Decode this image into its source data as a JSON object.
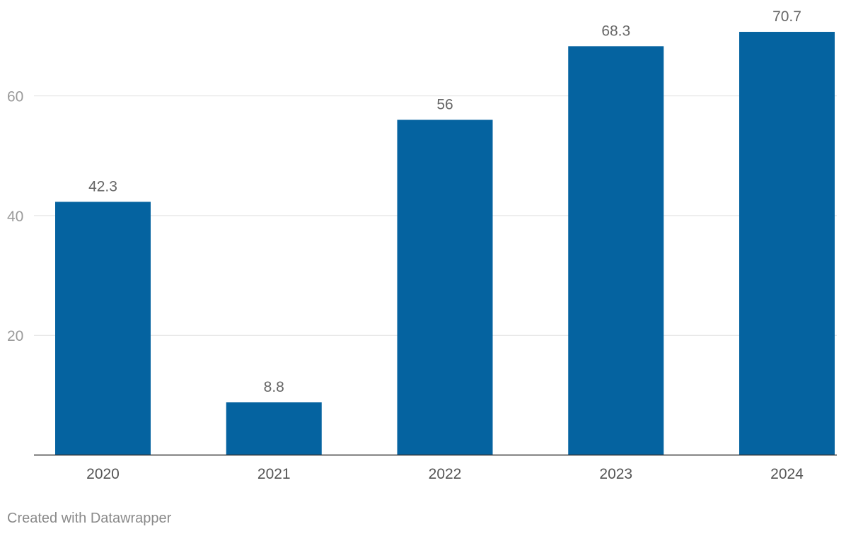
{
  "chart_data": {
    "type": "bar",
    "categories": [
      "2020",
      "2021",
      "2022",
      "2023",
      "2024"
    ],
    "values": [
      42.3,
      8.8,
      56,
      68.3,
      70.7
    ],
    "value_labels": [
      "42.3",
      "8.8",
      "56",
      "68.3",
      "70.7"
    ],
    "y_ticks": [
      20,
      40,
      60
    ],
    "ylim": [
      0,
      75
    ],
    "grid": true,
    "bar_color": "#0563a0"
  },
  "footer": {
    "credit": "Created with Datawrapper"
  }
}
